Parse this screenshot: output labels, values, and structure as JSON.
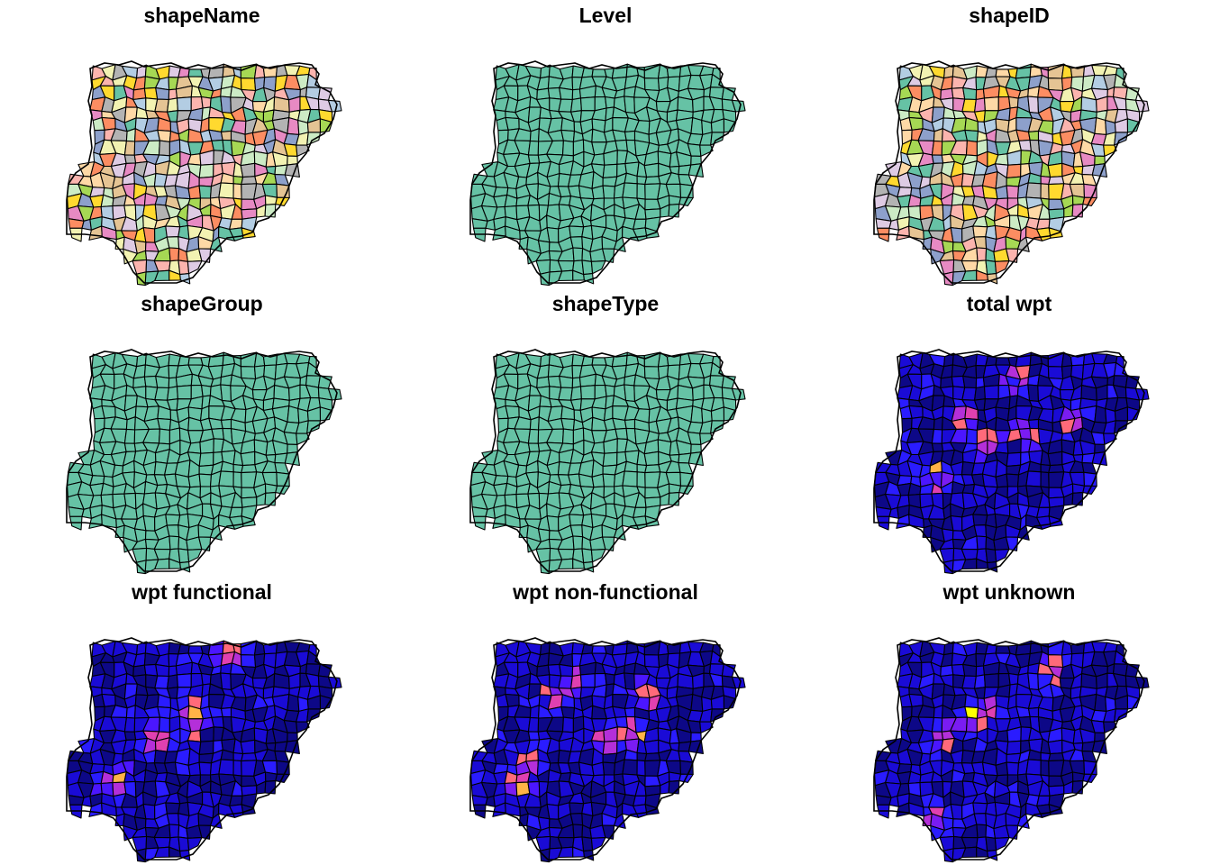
{
  "figure": {
    "panels": [
      {
        "title": "shapeName",
        "fill_mode": "categorical"
      },
      {
        "title": "Level",
        "fill_mode": "constant"
      },
      {
        "title": "shapeID",
        "fill_mode": "categorical"
      },
      {
        "title": "shapeGroup",
        "fill_mode": "constant"
      },
      {
        "title": "shapeType",
        "fill_mode": "constant"
      },
      {
        "title": "total wpt",
        "fill_mode": "sequential"
      },
      {
        "title": "wpt functional",
        "fill_mode": "sequential"
      },
      {
        "title": "wpt non-functional",
        "fill_mode": "sequential"
      },
      {
        "title": "wpt unknown",
        "fill_mode": "sequential"
      }
    ],
    "colors": {
      "constant": "#66c2a5",
      "border": "#000000",
      "categorical": [
        "#66c2a5",
        "#fc8d62",
        "#8da0cb",
        "#e78ac3",
        "#a6d854",
        "#ffd92f",
        "#e5c494",
        "#b3b3b3",
        "#fbb4ae",
        "#b3cde3",
        "#ccebc5",
        "#decbe4",
        "#fed9a6",
        "#f2f2b2"
      ],
      "sequential": [
        "#0d0887",
        "#1a0bd6",
        "#2a1cff",
        "#4b16ff",
        "#7a1cf2",
        "#b42fd9",
        "#e040b0",
        "#ff6a7a",
        "#ffb347",
        "#ffff00"
      ]
    }
  }
}
